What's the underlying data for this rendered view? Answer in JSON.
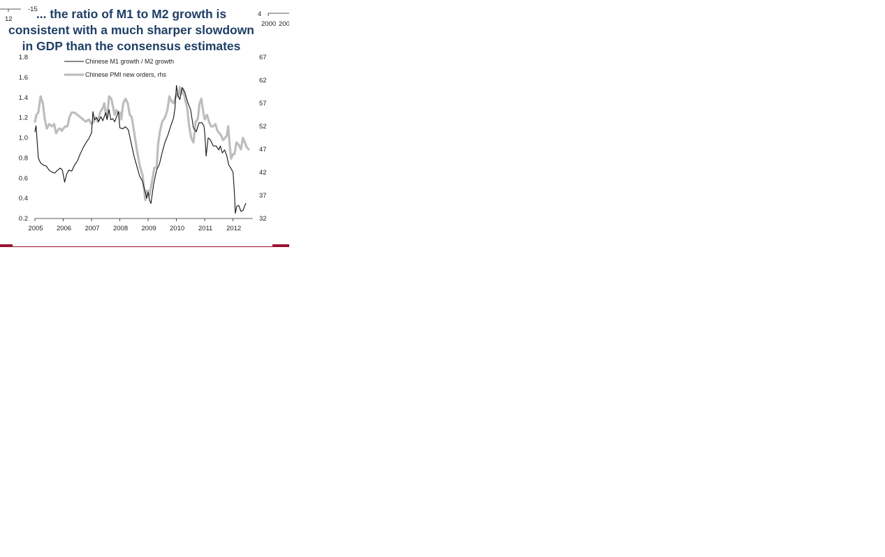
{
  "fragments": {
    "left_num": "12",
    "left_top": "-15",
    "right_num": "4",
    "right_years": [
      "2000",
      "200"
    ]
  },
  "chart_data": {
    "type": "line",
    "title": "... the ratio of M1 to M2 growth is consistent with a much sharper slowdown in GDP than the consensus estimates",
    "title_lines": [
      "... the ratio of M1 to M2 growth is",
      "consistent with a much sharper slowdown",
      "in GDP than the consensus estimates"
    ],
    "x_ticks": [
      "2005",
      "2006",
      "2007",
      "2008",
      "2009",
      "2010",
      "2011",
      "2012"
    ],
    "xlim": [
      2005,
      2012.7
    ],
    "y_left_ticks": [
      "1.8",
      "1.6",
      "1.4",
      "1.2",
      "1.0",
      "0.8",
      "0.6",
      "0.4",
      "0.2"
    ],
    "ylim_left": [
      0.2,
      1.8
    ],
    "y_right_ticks": [
      "67",
      "62",
      "57",
      "52",
      "47",
      "42",
      "37",
      "32"
    ],
    "ylim_right": [
      32,
      67
    ],
    "legend": [
      {
        "label": "Chinese M1 growth / M2 growth",
        "color": "#111111",
        "width": 1
      },
      {
        "label": "Chinese PMI new orders, rhs",
        "color": "#bdbdbd",
        "width": 3.2
      }
    ],
    "series": [
      {
        "name": "Chinese M1 growth / M2 growth",
        "axis": "left",
        "color": "#111111",
        "points": [
          [
            2005.0,
            1.06
          ],
          [
            2005.04,
            1.12
          ],
          [
            2005.08,
            0.96
          ],
          [
            2005.12,
            0.8
          ],
          [
            2005.2,
            0.75
          ],
          [
            2005.3,
            0.73
          ],
          [
            2005.4,
            0.72
          ],
          [
            2005.5,
            0.68
          ],
          [
            2005.6,
            0.66
          ],
          [
            2005.7,
            0.65
          ],
          [
            2005.8,
            0.68
          ],
          [
            2005.9,
            0.7
          ],
          [
            2005.97,
            0.68
          ],
          [
            2006.05,
            0.56
          ],
          [
            2006.12,
            0.64
          ],
          [
            2006.2,
            0.68
          ],
          [
            2006.3,
            0.67
          ],
          [
            2006.4,
            0.73
          ],
          [
            2006.5,
            0.77
          ],
          [
            2006.6,
            0.84
          ],
          [
            2006.7,
            0.9
          ],
          [
            2006.8,
            0.95
          ],
          [
            2006.9,
            0.99
          ],
          [
            2007.0,
            1.05
          ],
          [
            2007.05,
            1.26
          ],
          [
            2007.1,
            1.18
          ],
          [
            2007.18,
            1.2
          ],
          [
            2007.25,
            1.16
          ],
          [
            2007.33,
            1.21
          ],
          [
            2007.4,
            1.17
          ],
          [
            2007.5,
            1.25
          ],
          [
            2007.55,
            1.18
          ],
          [
            2007.62,
            1.28
          ],
          [
            2007.68,
            1.18
          ],
          [
            2007.75,
            1.19
          ],
          [
            2007.82,
            1.16
          ],
          [
            2007.9,
            1.22
          ],
          [
            2007.95,
            1.26
          ],
          [
            2008.0,
            1.1
          ],
          [
            2008.1,
            1.09
          ],
          [
            2008.2,
            1.11
          ],
          [
            2008.3,
            1.08
          ],
          [
            2008.4,
            0.95
          ],
          [
            2008.5,
            0.82
          ],
          [
            2008.6,
            0.72
          ],
          [
            2008.7,
            0.62
          ],
          [
            2008.8,
            0.57
          ],
          [
            2008.88,
            0.48
          ],
          [
            2008.95,
            0.4
          ],
          [
            2009.0,
            0.46
          ],
          [
            2009.05,
            0.38
          ],
          [
            2009.1,
            0.35
          ],
          [
            2009.2,
            0.55
          ],
          [
            2009.3,
            0.68
          ],
          [
            2009.4,
            0.74
          ],
          [
            2009.5,
            0.86
          ],
          [
            2009.6,
            0.96
          ],
          [
            2009.7,
            1.03
          ],
          [
            2009.8,
            1.12
          ],
          [
            2009.9,
            1.2
          ],
          [
            2009.95,
            1.3
          ],
          [
            2010.0,
            1.52
          ],
          [
            2010.05,
            1.42
          ],
          [
            2010.12,
            1.38
          ],
          [
            2010.2,
            1.5
          ],
          [
            2010.3,
            1.45
          ],
          [
            2010.4,
            1.35
          ],
          [
            2010.5,
            1.28
          ],
          [
            2010.6,
            1.1
          ],
          [
            2010.7,
            1.06
          ],
          [
            2010.8,
            1.15
          ],
          [
            2010.9,
            1.15
          ],
          [
            2010.97,
            1.12
          ],
          [
            2011.0,
            1.05
          ],
          [
            2011.05,
            0.82
          ],
          [
            2011.12,
            1.0
          ],
          [
            2011.2,
            0.98
          ],
          [
            2011.3,
            0.92
          ],
          [
            2011.4,
            0.92
          ],
          [
            2011.5,
            0.88
          ],
          [
            2011.55,
            0.92
          ],
          [
            2011.62,
            0.85
          ],
          [
            2011.7,
            0.88
          ],
          [
            2011.78,
            0.82
          ],
          [
            2011.85,
            0.73
          ],
          [
            2011.92,
            0.7
          ],
          [
            2012.0,
            0.66
          ],
          [
            2012.05,
            0.45
          ],
          [
            2012.08,
            0.25
          ],
          [
            2012.13,
            0.32
          ],
          [
            2012.2,
            0.33
          ],
          [
            2012.28,
            0.27
          ],
          [
            2012.35,
            0.28
          ],
          [
            2012.42,
            0.33
          ],
          [
            2012.45,
            0.35
          ]
        ]
      },
      {
        "name": "Chinese PMI new orders, rhs",
        "axis": "right",
        "color": "#bdbdbd",
        "points": [
          [
            2005.0,
            53.0
          ],
          [
            2005.05,
            54.5
          ],
          [
            2005.12,
            55.0
          ],
          [
            2005.2,
            58.5
          ],
          [
            2005.28,
            57.0
          ],
          [
            2005.35,
            53.5
          ],
          [
            2005.42,
            51.5
          ],
          [
            2005.5,
            52.5
          ],
          [
            2005.6,
            52.0
          ],
          [
            2005.68,
            52.5
          ],
          [
            2005.75,
            50.5
          ],
          [
            2005.85,
            51.5
          ],
          [
            2005.9,
            51.5
          ],
          [
            2005.95,
            51.0
          ],
          [
            2006.0,
            51.5
          ],
          [
            2006.08,
            52.0
          ],
          [
            2006.15,
            52.0
          ],
          [
            2006.22,
            54.0
          ],
          [
            2006.3,
            55.0
          ],
          [
            2006.4,
            55.0
          ],
          [
            2006.5,
            54.5
          ],
          [
            2006.6,
            54.0
          ],
          [
            2006.7,
            53.5
          ],
          [
            2006.8,
            53.0
          ],
          [
            2006.9,
            53.5
          ],
          [
            2006.95,
            53.0
          ],
          [
            2007.0,
            52.5
          ],
          [
            2007.08,
            53.0
          ],
          [
            2007.15,
            54.0
          ],
          [
            2007.22,
            53.0
          ],
          [
            2007.3,
            55.0
          ],
          [
            2007.4,
            56.0
          ],
          [
            2007.45,
            57.0
          ],
          [
            2007.5,
            55.0
          ],
          [
            2007.55,
            54.0
          ],
          [
            2007.62,
            58.5
          ],
          [
            2007.7,
            58.0
          ],
          [
            2007.75,
            56.5
          ],
          [
            2007.82,
            54.5
          ],
          [
            2007.88,
            55.5
          ],
          [
            2007.95,
            55.0
          ],
          [
            2008.0,
            55.0
          ],
          [
            2008.05,
            53.5
          ],
          [
            2008.12,
            57.0
          ],
          [
            2008.2,
            58.0
          ],
          [
            2008.28,
            57.0
          ],
          [
            2008.35,
            54.5
          ],
          [
            2008.42,
            54.0
          ],
          [
            2008.5,
            51.0
          ],
          [
            2008.6,
            47.0
          ],
          [
            2008.7,
            43.5
          ],
          [
            2008.8,
            41.5
          ],
          [
            2008.9,
            36.0
          ],
          [
            2008.95,
            38.0
          ],
          [
            2009.0,
            38.0
          ],
          [
            2009.05,
            37.0
          ],
          [
            2009.15,
            40.5
          ],
          [
            2009.22,
            43.0
          ],
          [
            2009.3,
            43.0
          ],
          [
            2009.35,
            48.0
          ],
          [
            2009.42,
            51.0
          ],
          [
            2009.5,
            53.0
          ],
          [
            2009.6,
            54.0
          ],
          [
            2009.68,
            55.5
          ],
          [
            2009.75,
            58.5
          ],
          [
            2009.82,
            57.5
          ],
          [
            2009.9,
            57.0
          ],
          [
            2009.95,
            58.0
          ],
          [
            2010.0,
            59.0
          ],
          [
            2010.07,
            58.5
          ],
          [
            2010.12,
            60.5
          ],
          [
            2010.18,
            59.0
          ],
          [
            2010.25,
            60.0
          ],
          [
            2010.3,
            58.0
          ],
          [
            2010.38,
            56.0
          ],
          [
            2010.45,
            52.0
          ],
          [
            2010.52,
            49.5
          ],
          [
            2010.6,
            48.5
          ],
          [
            2010.68,
            53.0
          ],
          [
            2010.75,
            53.5
          ],
          [
            2010.82,
            57.0
          ],
          [
            2010.88,
            58.0
          ],
          [
            2010.95,
            55.0
          ],
          [
            2011.0,
            53.5
          ],
          [
            2011.08,
            54.5
          ],
          [
            2011.15,
            53.0
          ],
          [
            2011.22,
            52.0
          ],
          [
            2011.3,
            52.0
          ],
          [
            2011.38,
            52.5
          ],
          [
            2011.45,
            51.0
          ],
          [
            2011.52,
            50.5
          ],
          [
            2011.58,
            50.0
          ],
          [
            2011.65,
            49.0
          ],
          [
            2011.72,
            49.5
          ],
          [
            2011.78,
            50.0
          ],
          [
            2011.83,
            52.0
          ],
          [
            2011.88,
            48.0
          ],
          [
            2011.93,
            45.0
          ],
          [
            2012.0,
            46.0
          ],
          [
            2012.05,
            46.0
          ],
          [
            2012.12,
            48.5
          ],
          [
            2012.2,
            48.0
          ],
          [
            2012.28,
            47.0
          ],
          [
            2012.35,
            49.5
          ],
          [
            2012.42,
            48.5
          ],
          [
            2012.48,
            47.5
          ],
          [
            2012.55,
            47.0
          ]
        ]
      }
    ]
  }
}
